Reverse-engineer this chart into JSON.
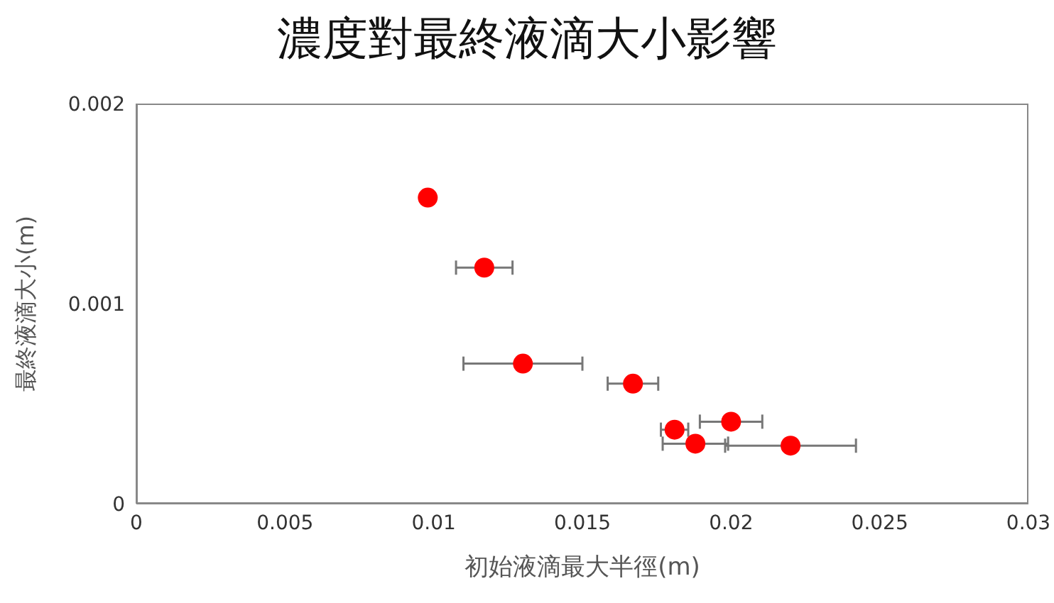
{
  "chart_data": {
    "type": "scatter",
    "title": "濃度對最終液滴大小影響",
    "xlabel": "初始液滴最大半徑(m)",
    "ylabel": "最終液滴大小(m)",
    "x": [
      0.0098,
      0.0117,
      0.013,
      0.0167,
      0.0181,
      0.02,
      0.0188,
      0.022
    ],
    "values": [
      0.00153,
      0.00118,
      0.0007,
      0.0006,
      0.00037,
      0.00041,
      0.0003,
      0.00029
    ],
    "xerrors": [
      null,
      0.00095,
      0.002,
      0.00085,
      0.00046,
      0.00105,
      0.0011,
      0.0022
    ],
    "color": "#ff0000",
    "marker": "circle",
    "grid": false,
    "legend": false,
    "xlim": [
      0,
      0.03
    ],
    "xticks": [
      0,
      0.005,
      0.01,
      0.015,
      0.02,
      0.025,
      0.03
    ],
    "ylim": [
      0,
      0.002
    ],
    "yticks": [
      0,
      0.001,
      0.002
    ]
  }
}
